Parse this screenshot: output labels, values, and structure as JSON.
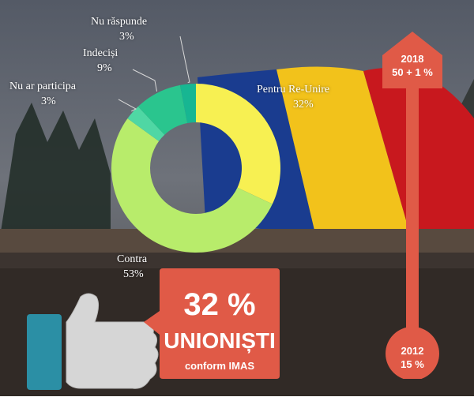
{
  "chart_data": {
    "type": "pie",
    "title": "",
    "slices": [
      {
        "label": "Pentru Re-Unire",
        "value": 32,
        "display": "32%",
        "color": "#f7f052"
      },
      {
        "label": "Contra",
        "value": 53,
        "display": "53%",
        "color": "#b8ec6b"
      },
      {
        "label": "Nu ar participa",
        "value": 3,
        "display": "3%",
        "color": "#4fd7a4"
      },
      {
        "label": "Indeciși",
        "value": 9,
        "display": "9%",
        "color": "#2ac58e"
      },
      {
        "label": "Nu răspunde",
        "value": 3,
        "display": "3%",
        "color": "#17b692"
      }
    ],
    "hole": "donut"
  },
  "callout": {
    "value": "32 %",
    "word": "UNIONIȘTI",
    "source": "conform IMAS",
    "color": "#e05a47"
  },
  "timeline": {
    "top_year": "2018",
    "top_value": "50 + 1 %",
    "bottom_year": "2012",
    "bottom_value": "15 %",
    "color": "#e05a47"
  },
  "colors": {
    "thumb": "#d4d4d4",
    "cuff": "#2b8fa5"
  }
}
